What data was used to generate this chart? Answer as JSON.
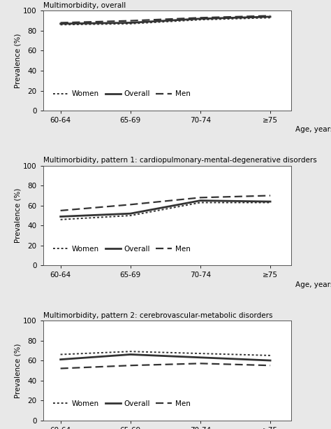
{
  "x_labels": [
    "60-64",
    "65-69",
    "70-74",
    "≥75"
  ],
  "x_label_text": "Age, years",
  "ylabel": "Prevalence (%)",
  "panels": [
    {
      "title": "Multimorbidity, overall",
      "ylim": [
        0,
        100
      ],
      "yticks": [
        0,
        20,
        40,
        60,
        80,
        100
      ],
      "women": [
        86,
        87,
        91,
        93
      ],
      "overall": [
        87,
        88,
        92,
        94
      ],
      "men": [
        88,
        90,
        93,
        95
      ]
    },
    {
      "title": "Multimorbidity, pattern 1: cardiopulmonary-mental-degenerative disorders",
      "ylim": [
        0,
        100
      ],
      "yticks": [
        0,
        20,
        40,
        60,
        80,
        100
      ],
      "women": [
        46,
        50,
        63,
        63
      ],
      "overall": [
        49,
        52,
        65,
        64
      ],
      "men": [
        55,
        61,
        68,
        70
      ]
    },
    {
      "title": "Multimorbidity, pattern 2: cerebrovascular-metabolic disorders",
      "ylim": [
        0,
        100
      ],
      "yticks": [
        0,
        20,
        40,
        60,
        80,
        100
      ],
      "women": [
        66,
        69,
        67,
        65
      ],
      "overall": [
        61,
        66,
        63,
        60
      ],
      "men": [
        52,
        55,
        57,
        55
      ]
    }
  ],
  "line_color": "#333333",
  "legend_labels": [
    "Women",
    "Overall",
    "Men"
  ],
  "bg_color": "#e8e8e8",
  "panel_bg": "#ffffff",
  "title_fontsize": 7.5,
  "tick_fontsize": 7.5,
  "legend_fontsize": 7.5,
  "ylabel_fontsize": 7.5
}
